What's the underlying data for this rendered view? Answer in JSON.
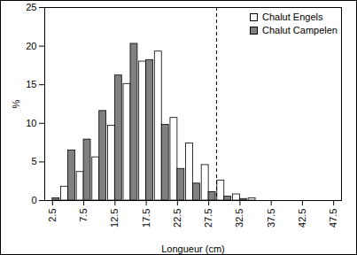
{
  "chart_data": {
    "type": "bar",
    "x": [
      2.5,
      5,
      7.5,
      10,
      12.5,
      15,
      17.5,
      20,
      22.5,
      25,
      27.5,
      30,
      32.5,
      35,
      37.5,
      40,
      42.5,
      45,
      47.5
    ],
    "series": [
      {
        "name": "Chalut Engels",
        "color": "#ffffff",
        "values": [
          0,
          1.8,
          3.7,
          5.6,
          9.7,
          15.1,
          18.0,
          19.3,
          10.7,
          7.4,
          4.6,
          2.6,
          0.8,
          0.3,
          0,
          0,
          0,
          0,
          0
        ]
      },
      {
        "name": "Chalut Campelen",
        "color": "#808080",
        "values": [
          0.3,
          6.5,
          7.9,
          11.6,
          16.2,
          20.3,
          18.2,
          9.8,
          4.1,
          2.2,
          1.1,
          0.5,
          0.2,
          0,
          0,
          0,
          0,
          0,
          0
        ]
      }
    ],
    "x_label": "Longueur (cm)",
    "y_label": "%",
    "xlim": [
      1.25,
      48.75
    ],
    "xticks": [
      2.5,
      7.5,
      12.5,
      17.5,
      22.5,
      27.5,
      32.5,
      37.5,
      42.5,
      47.5
    ],
    "ylim": [
      0,
      25
    ],
    "yticks": [
      0,
      5,
      10,
      15,
      20,
      25
    ],
    "reference_line": 28.75,
    "legend": "top-right",
    "grid": false
  }
}
